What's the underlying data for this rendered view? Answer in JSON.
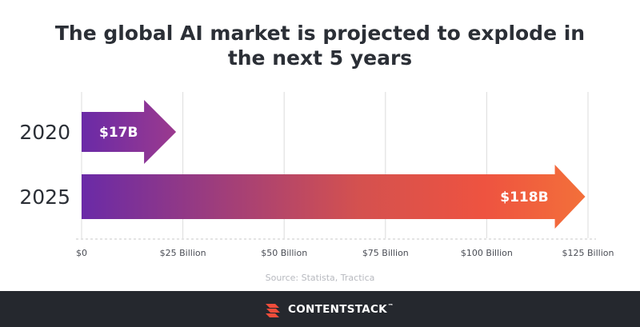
{
  "colors": {
    "purple": "#6a2aa7",
    "magenta": "#9b3a8e",
    "orange": "#f3703a",
    "red_orange": "#ee5340",
    "grid": "#dcdcdc",
    "footer": "#25282e",
    "logo_red": "#ef4d3b"
  },
  "chart_data": {
    "type": "bar",
    "orientation": "horizontal",
    "title": [
      "The global AI market is projected to explode in",
      "the next 5 years"
    ],
    "categories": [
      "2020",
      "2025"
    ],
    "values": [
      17,
      118
    ],
    "data_labels": [
      "$17B",
      "$118B"
    ],
    "x_ticks": [
      0,
      25,
      50,
      75,
      100,
      125
    ],
    "x_tick_labels": [
      "$0",
      "$25 Billion",
      "$50 Billion",
      "$75 Billion",
      "$100 Billion",
      "$125 Billion"
    ],
    "xlim": [
      0,
      125
    ],
    "grid": "vertical",
    "bar_shape": "arrow"
  },
  "source_text": "Source: Statista, Tractica",
  "brand": {
    "name": "CONTENTSTACK",
    "mark": "™",
    "icon": "contentstack-logo-icon"
  }
}
